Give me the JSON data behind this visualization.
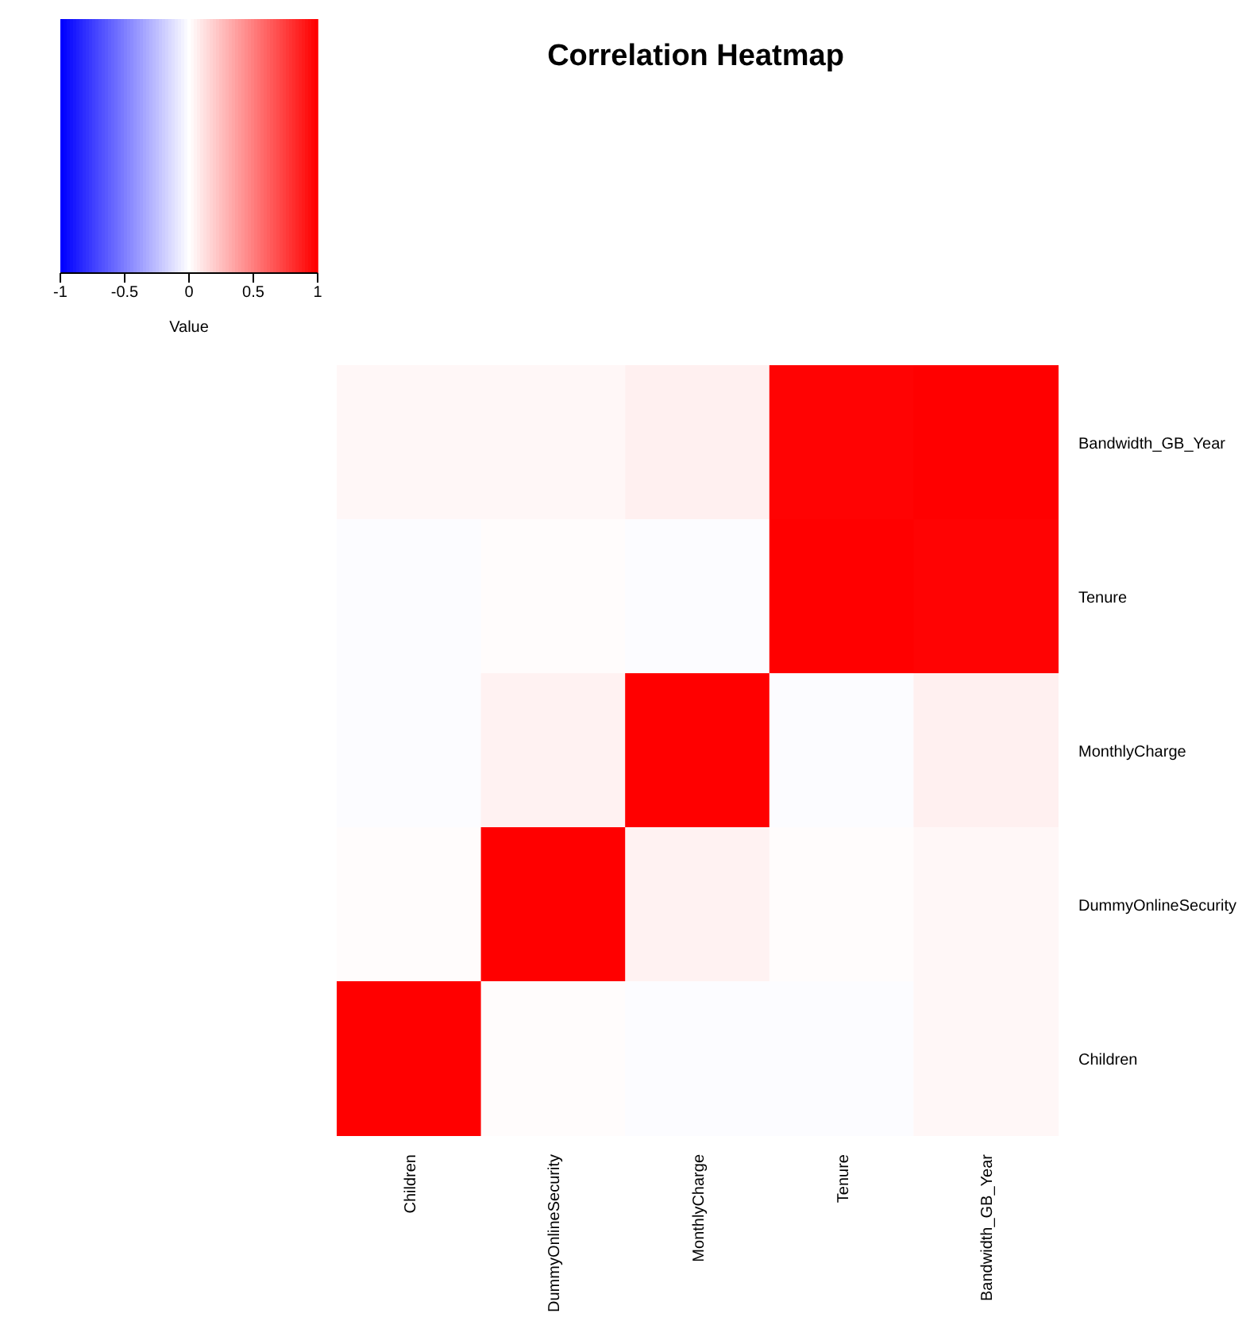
{
  "chart_data": [
    {
      "type": "heatmap",
      "title": "Correlation Heatmap",
      "clabel": "Value",
      "categories": [
        "Children",
        "DummyOnlineSecurity",
        "MonthlyCharge",
        "Tenure",
        "Bandwidth_GB_Year"
      ],
      "y_categories": [
        "Bandwidth_GB_Year",
        "Tenure",
        "MonthlyCharge",
        "DummyOnlineSecurity",
        "Children"
      ],
      "cells": [
        [
          0.03,
          0.03,
          0.06,
          0.99,
          1
        ],
        [
          -0.01,
          0.01,
          -0.01,
          1,
          0.99
        ],
        [
          -0.01,
          0.05,
          1,
          -0.01,
          0.06
        ],
        [
          0.01,
          1,
          0.05,
          0.01,
          0.03
        ],
        [
          1,
          0.01,
          -0.01,
          -0.01,
          0.03
        ]
      ],
      "clim": [
        -1,
        1
      ],
      "cticks": [
        -1,
        -0.5,
        0,
        0.5,
        1
      ]
    }
  ]
}
